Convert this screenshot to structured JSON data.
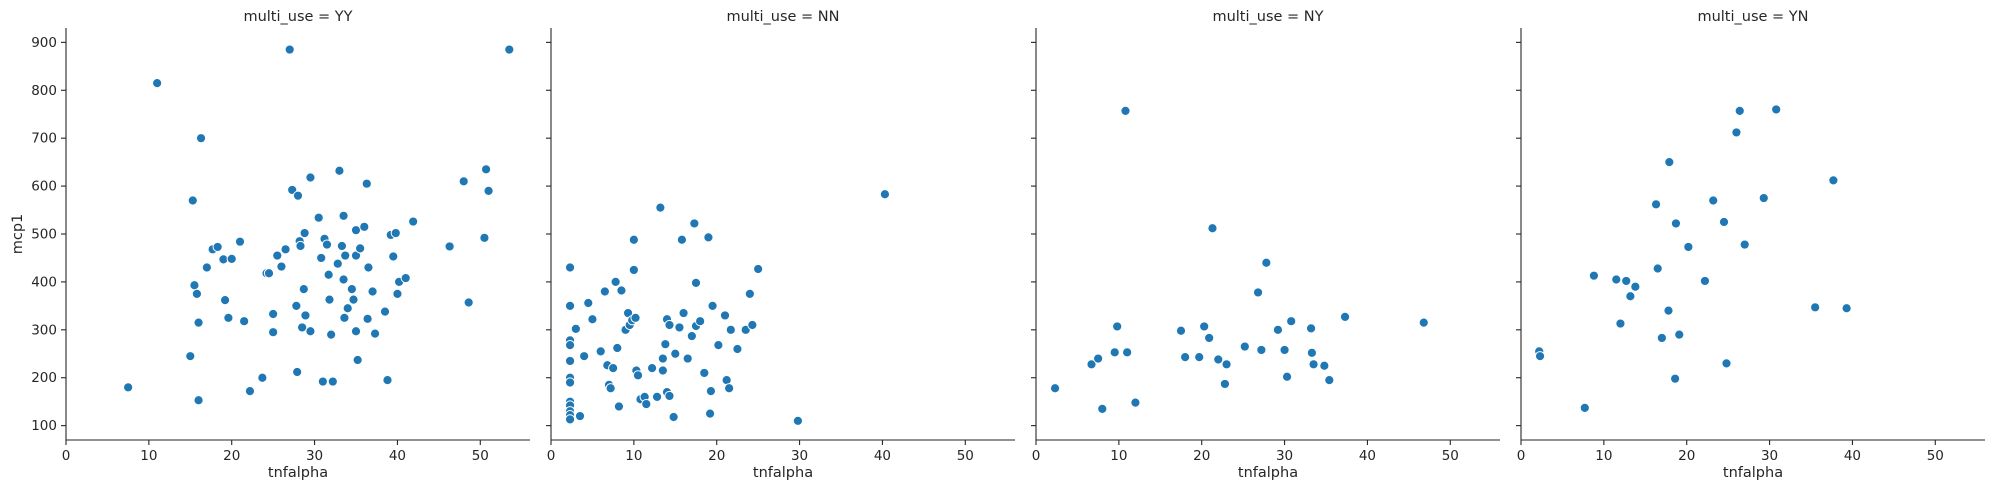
{
  "colors": {
    "marker": "#1f77b4",
    "axis": "#262626",
    "background": "#ffffff"
  },
  "chart_data": {
    "type": "scatter",
    "facet_variable": "multi_use",
    "xlabel": "tnfalpha",
    "ylabel": "mcp1",
    "xlim": [
      0,
      56
    ],
    "ylim": [
      70,
      930
    ],
    "xticks": [
      0,
      10,
      20,
      30,
      40,
      50
    ],
    "yticks": [
      100,
      200,
      300,
      400,
      500,
      600,
      700,
      800,
      900
    ],
    "shared_y": true,
    "grid": false,
    "legend": "none",
    "panels": [
      {
        "title": "multi_use = YY",
        "points": [
          [
            7.5,
            180
          ],
          [
            11,
            815
          ],
          [
            15,
            245
          ],
          [
            15.3,
            570
          ],
          [
            15.5,
            393
          ],
          [
            15.8,
            375
          ],
          [
            16,
            315
          ],
          [
            16,
            153
          ],
          [
            16.3,
            700
          ],
          [
            17,
            430
          ],
          [
            17.7,
            468
          ],
          [
            18.3,
            473
          ],
          [
            19,
            447
          ],
          [
            19.2,
            362
          ],
          [
            19.6,
            325
          ],
          [
            20,
            448
          ],
          [
            21,
            484
          ],
          [
            21.5,
            318
          ],
          [
            22.2,
            172
          ],
          [
            23.7,
            200
          ],
          [
            24.2,
            418
          ],
          [
            24.5,
            418
          ],
          [
            25,
            333
          ],
          [
            25,
            295
          ],
          [
            25.5,
            455
          ],
          [
            26,
            432
          ],
          [
            26.5,
            468
          ],
          [
            27,
            885
          ],
          [
            27.3,
            592
          ],
          [
            27.8,
            350
          ],
          [
            27.9,
            212
          ],
          [
            28,
            580
          ],
          [
            28.2,
            485
          ],
          [
            28.3,
            475
          ],
          [
            28.5,
            305
          ],
          [
            28.7,
            385
          ],
          [
            28.8,
            502
          ],
          [
            28.9,
            330
          ],
          [
            29.5,
            618
          ],
          [
            29.5,
            297
          ],
          [
            30.5,
            534
          ],
          [
            30.8,
            450
          ],
          [
            31,
            192
          ],
          [
            31.2,
            490
          ],
          [
            31.5,
            478
          ],
          [
            31.7,
            415
          ],
          [
            31.8,
            363
          ],
          [
            32,
            290
          ],
          [
            32.2,
            192
          ],
          [
            32.8,
            438
          ],
          [
            33,
            632
          ],
          [
            33.3,
            475
          ],
          [
            33.5,
            538
          ],
          [
            33.5,
            405
          ],
          [
            33.6,
            325
          ],
          [
            33.7,
            455
          ],
          [
            34,
            345
          ],
          [
            34.5,
            385
          ],
          [
            34.7,
            363
          ],
          [
            35,
            455
          ],
          [
            35,
            508
          ],
          [
            35,
            297
          ],
          [
            35.2,
            237
          ],
          [
            35.5,
            470
          ],
          [
            36,
            515
          ],
          [
            36.3,
            605
          ],
          [
            36.4,
            323
          ],
          [
            36.5,
            430
          ],
          [
            37,
            380
          ],
          [
            37.3,
            292
          ],
          [
            38.5,
            338
          ],
          [
            38.8,
            195
          ],
          [
            39.2,
            498
          ],
          [
            39.5,
            453
          ],
          [
            39.8,
            502
          ],
          [
            40,
            375
          ],
          [
            40.2,
            400
          ],
          [
            41,
            408
          ],
          [
            41.9,
            526
          ],
          [
            46.3,
            474
          ],
          [
            48,
            610
          ],
          [
            48.6,
            357
          ],
          [
            50.5,
            492
          ],
          [
            50.7,
            635
          ],
          [
            51,
            590
          ],
          [
            53.5,
            885
          ]
        ]
      },
      {
        "title": "multi_use = NN",
        "points": [
          [
            2.3,
            430
          ],
          [
            2.3,
            350
          ],
          [
            2.3,
            278
          ],
          [
            2.3,
            268
          ],
          [
            2.3,
            235
          ],
          [
            2.3,
            200
          ],
          [
            2.3,
            190
          ],
          [
            2.3,
            150
          ],
          [
            2.3,
            142
          ],
          [
            2.3,
            130
          ],
          [
            2.3,
            122
          ],
          [
            2.3,
            113
          ],
          [
            3,
            302
          ],
          [
            3.5,
            120
          ],
          [
            4,
            245
          ],
          [
            4.5,
            356
          ],
          [
            5,
            322
          ],
          [
            6,
            255
          ],
          [
            6.5,
            380
          ],
          [
            6.8,
            226
          ],
          [
            7,
            185
          ],
          [
            7.2,
            178
          ],
          [
            7.5,
            220
          ],
          [
            7.8,
            400
          ],
          [
            8,
            262
          ],
          [
            8.2,
            140
          ],
          [
            8.5,
            382
          ],
          [
            9,
            300
          ],
          [
            9.3,
            335
          ],
          [
            9.5,
            310
          ],
          [
            9.8,
            320
          ],
          [
            10,
            488
          ],
          [
            10,
            425
          ],
          [
            10.2,
            325
          ],
          [
            10.3,
            215
          ],
          [
            10.5,
            205
          ],
          [
            10.8,
            155
          ],
          [
            11.3,
            160
          ],
          [
            11.5,
            145
          ],
          [
            12.2,
            220
          ],
          [
            12.8,
            160
          ],
          [
            13.2,
            555
          ],
          [
            13.5,
            240
          ],
          [
            13.5,
            215
          ],
          [
            13.8,
            270
          ],
          [
            14,
            170
          ],
          [
            14,
            322
          ],
          [
            14.3,
            310
          ],
          [
            14.3,
            162
          ],
          [
            14.8,
            118
          ],
          [
            15,
            250
          ],
          [
            15.5,
            305
          ],
          [
            15.8,
            488
          ],
          [
            16,
            335
          ],
          [
            16.5,
            240
          ],
          [
            17,
            287
          ],
          [
            17.3,
            522
          ],
          [
            17.5,
            398
          ],
          [
            17.5,
            308
          ],
          [
            18,
            318
          ],
          [
            18.5,
            210
          ],
          [
            19,
            493
          ],
          [
            19.2,
            125
          ],
          [
            19.3,
            172
          ],
          [
            19.5,
            350
          ],
          [
            20.2,
            268
          ],
          [
            21,
            330
          ],
          [
            21.2,
            195
          ],
          [
            21.5,
            178
          ],
          [
            21.7,
            300
          ],
          [
            22.5,
            260
          ],
          [
            23.5,
            300
          ],
          [
            24,
            375
          ],
          [
            24.3,
            310
          ],
          [
            25,
            427
          ],
          [
            29.8,
            110
          ],
          [
            40.3,
            583
          ]
        ]
      },
      {
        "title": "multi_use = NY",
        "points": [
          [
            2.3,
            178
          ],
          [
            6.7,
            228
          ],
          [
            7.5,
            240
          ],
          [
            8,
            135
          ],
          [
            9.5,
            253
          ],
          [
            9.8,
            307
          ],
          [
            10.8,
            757
          ],
          [
            11,
            253
          ],
          [
            12,
            148
          ],
          [
            17.5,
            298
          ],
          [
            18,
            243
          ],
          [
            19.7,
            243
          ],
          [
            20.3,
            307
          ],
          [
            20.9,
            283
          ],
          [
            21.3,
            512
          ],
          [
            22,
            238
          ],
          [
            22.8,
            187
          ],
          [
            23,
            228
          ],
          [
            25.2,
            265
          ],
          [
            26.8,
            378
          ],
          [
            27.2,
            258
          ],
          [
            27.8,
            440
          ],
          [
            29.2,
            300
          ],
          [
            30,
            258
          ],
          [
            30.3,
            202
          ],
          [
            30.8,
            318
          ],
          [
            33.2,
            303
          ],
          [
            33.3,
            252
          ],
          [
            33.5,
            228
          ],
          [
            34.8,
            225
          ],
          [
            35.4,
            195
          ],
          [
            37.3,
            327
          ],
          [
            46.8,
            315
          ]
        ]
      },
      {
        "title": "multi_use = YN",
        "points": [
          [
            2.2,
            255
          ],
          [
            2.3,
            245
          ],
          [
            7.7,
            137
          ],
          [
            8.8,
            413
          ],
          [
            11.5,
            405
          ],
          [
            12,
            313
          ],
          [
            12.7,
            402
          ],
          [
            13.2,
            370
          ],
          [
            13.8,
            390
          ],
          [
            16.3,
            562
          ],
          [
            16.5,
            428
          ],
          [
            17,
            283
          ],
          [
            17.8,
            340
          ],
          [
            17.9,
            650
          ],
          [
            18.6,
            198
          ],
          [
            18.7,
            522
          ],
          [
            19.1,
            290
          ],
          [
            20.2,
            473
          ],
          [
            22.2,
            402
          ],
          [
            23.2,
            570
          ],
          [
            24.5,
            525
          ],
          [
            24.8,
            230
          ],
          [
            26,
            712
          ],
          [
            26.4,
            757
          ],
          [
            27,
            478
          ],
          [
            29.3,
            575
          ],
          [
            30.8,
            760
          ],
          [
            35.5,
            347
          ],
          [
            37.7,
            612
          ],
          [
            39.3,
            345
          ]
        ]
      }
    ]
  }
}
